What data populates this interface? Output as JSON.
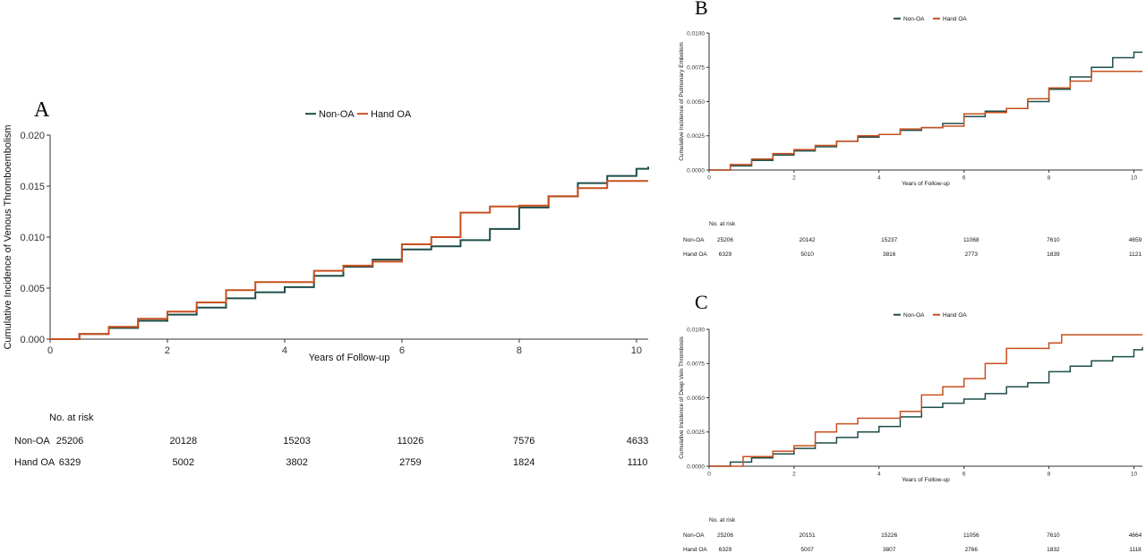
{
  "colors": {
    "non_oa": "#1f4e4a",
    "hand_oa": "#c8501e",
    "axis": "#333333"
  },
  "chart_data": [
    {
      "panel": "A",
      "type": "line",
      "xlabel": "Years of Follow-up",
      "ylabel": "Cumulative Incidence of Venous Thromboembolism",
      "xlim": [
        0,
        10.2
      ],
      "ylim": [
        0,
        0.02
      ],
      "x_ticks": [
        "0",
        "2",
        "4",
        "6",
        "8",
        "10"
      ],
      "y_ticks": [
        "0.000",
        "0.005",
        "0.010",
        "0.015",
        "0.020"
      ],
      "legend": [
        "Non-OA",
        "Hand OA"
      ],
      "legend_position": "top",
      "series": [
        {
          "name": "Non-OA",
          "color_key": "non_oa",
          "points": [
            [
              0,
              0
            ],
            [
              0.5,
              0.0005
            ],
            [
              1,
              0.0011
            ],
            [
              1.5,
              0.0018
            ],
            [
              2,
              0.0024
            ],
            [
              2.5,
              0.0031
            ],
            [
              3,
              0.004
            ],
            [
              3.5,
              0.0046
            ],
            [
              4,
              0.0051
            ],
            [
              4.5,
              0.0062
            ],
            [
              5,
              0.0071
            ],
            [
              5.5,
              0.0078
            ],
            [
              6,
              0.0088
            ],
            [
              6.5,
              0.0091
            ],
            [
              7,
              0.0097
            ],
            [
              7.5,
              0.0108
            ],
            [
              8,
              0.0129
            ],
            [
              8.5,
              0.014
            ],
            [
              9,
              0.0153
            ],
            [
              9.5,
              0.016
            ],
            [
              10,
              0.0167
            ],
            [
              10.2,
              0.0169
            ]
          ]
        },
        {
          "name": "Hand OA",
          "color_key": "hand_oa",
          "points": [
            [
              0,
              0
            ],
            [
              0.5,
              0.0005
            ],
            [
              1,
              0.0012
            ],
            [
              1.5,
              0.002
            ],
            [
              2,
              0.0027
            ],
            [
              2.5,
              0.0036
            ],
            [
              3,
              0.0048
            ],
            [
              3.5,
              0.0056
            ],
            [
              4,
              0.0056
            ],
            [
              4.5,
              0.0067
            ],
            [
              5,
              0.0072
            ],
            [
              5.5,
              0.0076
            ],
            [
              6,
              0.0093
            ],
            [
              6.5,
              0.01
            ],
            [
              7,
              0.0124
            ],
            [
              7.5,
              0.013
            ],
            [
              8,
              0.0131
            ],
            [
              8.5,
              0.014
            ],
            [
              9,
              0.0148
            ],
            [
              9.5,
              0.0155
            ],
            [
              10,
              0.0155
            ],
            [
              10.2,
              0.0155
            ]
          ]
        }
      ],
      "risk_table": {
        "title": "No. at risk",
        "rows": [
          {
            "label": "Non-OA",
            "values": [
              "25206",
              "20128",
              "15203",
              "11026",
              "7576",
              "4633"
            ]
          },
          {
            "label": "Hand OA",
            "values": [
              "6329",
              "5002",
              "3802",
              "2759",
              "1824",
              "1110"
            ]
          }
        ]
      }
    },
    {
      "panel": "B",
      "type": "line",
      "xlabel": "Years of Follow-up",
      "ylabel": "Cumulative Incidence of Pulmonary Embolism",
      "xlim": [
        0,
        10.2
      ],
      "ylim": [
        0,
        0.01
      ],
      "x_ticks": [
        "0",
        "2",
        "4",
        "6",
        "8",
        "10"
      ],
      "y_ticks": [
        "0.0000",
        "0.0025",
        "0.0050",
        "0.0075",
        "0.0100"
      ],
      "legend": [
        "Non-OA",
        "Hand OA"
      ],
      "legend_position": "top",
      "series": [
        {
          "name": "Non-OA",
          "color_key": "non_oa",
          "points": [
            [
              0,
              0
            ],
            [
              0.5,
              0.0003
            ],
            [
              1,
              0.0007
            ],
            [
              1.5,
              0.0011
            ],
            [
              2,
              0.0014
            ],
            [
              2.5,
              0.0017
            ],
            [
              3,
              0.0021
            ],
            [
              3.5,
              0.0024
            ],
            [
              4,
              0.0026
            ],
            [
              4.5,
              0.0029
            ],
            [
              5,
              0.0031
            ],
            [
              5.5,
              0.0034
            ],
            [
              6,
              0.0039
            ],
            [
              6.5,
              0.0043
            ],
            [
              7,
              0.0045
            ],
            [
              7.5,
              0.005
            ],
            [
              8,
              0.0059
            ],
            [
              8.5,
              0.0068
            ],
            [
              9,
              0.0075
            ],
            [
              9.5,
              0.0082
            ],
            [
              10,
              0.0086
            ],
            [
              10.2,
              0.0086
            ]
          ]
        },
        {
          "name": "Hand OA",
          "color_key": "hand_oa",
          "points": [
            [
              0,
              0
            ],
            [
              0.5,
              0.0004
            ],
            [
              1,
              0.0008
            ],
            [
              1.5,
              0.0012
            ],
            [
              2,
              0.0015
            ],
            [
              2.5,
              0.0018
            ],
            [
              3,
              0.0021
            ],
            [
              3.5,
              0.0025
            ],
            [
              4,
              0.0026
            ],
            [
              4.5,
              0.003
            ],
            [
              5,
              0.0031
            ],
            [
              5.5,
              0.0032
            ],
            [
              6,
              0.0041
            ],
            [
              6.5,
              0.0042
            ],
            [
              7,
              0.0045
            ],
            [
              7.5,
              0.0052
            ],
            [
              8,
              0.006
            ],
            [
              8.5,
              0.0065
            ],
            [
              9,
              0.0072
            ],
            [
              9.5,
              0.0072
            ],
            [
              10,
              0.0072
            ],
            [
              10.2,
              0.0072
            ]
          ]
        }
      ],
      "risk_table": {
        "title": "No. at risk",
        "rows": [
          {
            "label": "Non-OA",
            "values": [
              "25206",
              "20142",
              "15237",
              "11068",
              "7610",
              "4659"
            ]
          },
          {
            "label": "Hand OA",
            "values": [
              "6329",
              "5010",
              "3816",
              "2773",
              "1839",
              "1121"
            ]
          }
        ]
      }
    },
    {
      "panel": "C",
      "type": "line",
      "xlabel": "Years of Follow-up",
      "ylabel": "Cumulative Incidence of Deep Vein Thrombosis",
      "xlim": [
        0,
        10.2
      ],
      "ylim": [
        0,
        0.01
      ],
      "x_ticks": [
        "0",
        "2",
        "4",
        "6",
        "8",
        "10"
      ],
      "y_ticks": [
        "0.0000",
        "0.0025",
        "0.0050",
        "0.0075",
        "0.0100"
      ],
      "legend": [
        "Non-OA",
        "Hand OA"
      ],
      "legend_position": "top",
      "series": [
        {
          "name": "Non-OA",
          "color_key": "non_oa",
          "points": [
            [
              0,
              0
            ],
            [
              0.5,
              0.0003
            ],
            [
              1,
              0.0006
            ],
            [
              1.5,
              0.0009
            ],
            [
              2,
              0.0013
            ],
            [
              2.5,
              0.0017
            ],
            [
              3,
              0.0021
            ],
            [
              3.5,
              0.0025
            ],
            [
              4,
              0.0029
            ],
            [
              4.5,
              0.0036
            ],
            [
              5,
              0.0043
            ],
            [
              5.5,
              0.0046
            ],
            [
              6,
              0.0049
            ],
            [
              6.5,
              0.0053
            ],
            [
              7,
              0.0058
            ],
            [
              7.5,
              0.0061
            ],
            [
              8,
              0.0069
            ],
            [
              8.5,
              0.0073
            ],
            [
              9,
              0.0077
            ],
            [
              9.5,
              0.008
            ],
            [
              10,
              0.0085
            ],
            [
              10.2,
              0.0087
            ]
          ]
        },
        {
          "name": "Hand OA",
          "color_key": "hand_oa",
          "points": [
            [
              0,
              0
            ],
            [
              0.5,
              0.0
            ],
            [
              0.8,
              0.0007
            ],
            [
              1.5,
              0.0011
            ],
            [
              2,
              0.0015
            ],
            [
              2.5,
              0.0025
            ],
            [
              3,
              0.0031
            ],
            [
              3.5,
              0.0035
            ],
            [
              4,
              0.0035
            ],
            [
              4.5,
              0.004
            ],
            [
              5,
              0.0052
            ],
            [
              5.5,
              0.0058
            ],
            [
              6,
              0.0064
            ],
            [
              6.5,
              0.0075
            ],
            [
              7,
              0.0086
            ],
            [
              7.5,
              0.0086
            ],
            [
              8,
              0.009
            ],
            [
              8.3,
              0.0096
            ],
            [
              9,
              0.0096
            ],
            [
              10,
              0.0096
            ],
            [
              10.2,
              0.0096
            ]
          ]
        }
      ],
      "risk_table": {
        "title": "No. at risk",
        "rows": [
          {
            "label": "Non-OA",
            "values": [
              "25206",
              "20151",
              "15226",
              "11056",
              "7610",
              "4664"
            ]
          },
          {
            "label": "Hand OA",
            "values": [
              "6329",
              "5007",
              "3807",
              "2766",
              "1832",
              "1118"
            ]
          }
        ]
      }
    }
  ]
}
